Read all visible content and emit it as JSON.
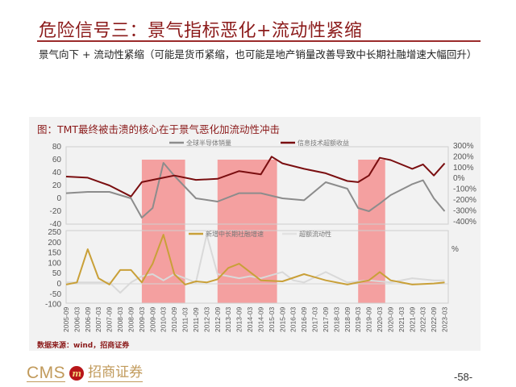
{
  "page": {
    "title": "危险信号三：景气指标恶化+流动性紧缩",
    "subtitle": "景气向下 + 流动性紧缩（可能是货币紧缩，也可能是地产销量改善导致中长期社融增速大幅回升）",
    "chart_caption": "图：TMT最终被击溃的核心在于景气恶化加流动性冲击",
    "source": "数据来源：wind，招商证券",
    "page_number": "-58-",
    "logo": {
      "latin": "CMS",
      "emblem": "m",
      "chinese": "招商证券"
    }
  },
  "chart_data": [
    {
      "type": "line",
      "title": "",
      "legend_position": "top-right",
      "left_axis": {
        "ticks": [
          "80",
          "60",
          "40",
          "20",
          "0",
          "-20",
          "-40"
        ],
        "ylim": [
          -40,
          80
        ]
      },
      "right_axis": {
        "ticks": [
          "300%",
          "200%",
          "100%",
          "0%",
          "-100%",
          "-200%",
          "-300%",
          "-400%"
        ],
        "ylim": [
          -400,
          300
        ]
      },
      "series": [
        {
          "name": "全球半导体销量",
          "axis": "left",
          "color": "#8c8c8c",
          "x": [
            "2005-09",
            "2006-09",
            "2007-09",
            "2008-09",
            "2009-03",
            "2009-09",
            "2010-03",
            "2010-09",
            "2011-09",
            "2012-09",
            "2013-09",
            "2014-09",
            "2015-09",
            "2016-09",
            "2017-09",
            "2018-09",
            "2019-03",
            "2019-09",
            "2020-03",
            "2020-09",
            "2021-09",
            "2022-03",
            "2022-09",
            "2023-03"
          ],
          "values": [
            8,
            10,
            10,
            0,
            -30,
            -15,
            55,
            35,
            0,
            -5,
            8,
            8,
            0,
            -3,
            25,
            15,
            -15,
            -20,
            -8,
            5,
            22,
            28,
            0,
            -20
          ]
        },
        {
          "name": "信息技术超额收益",
          "axis": "right",
          "color": "#7a0e10",
          "x": [
            "2005-09",
            "2006-09",
            "2007-09",
            "2008-09",
            "2009-03",
            "2009-09",
            "2010-03",
            "2010-09",
            "2011-09",
            "2012-09",
            "2013-09",
            "2014-09",
            "2015-03",
            "2015-09",
            "2016-09",
            "2017-09",
            "2018-09",
            "2019-03",
            "2019-09",
            "2020-03",
            "2020-09",
            "2021-09",
            "2022-03",
            "2022-09",
            "2023-03"
          ],
          "values": [
            30,
            20,
            -50,
            -150,
            -20,
            0,
            20,
            40,
            0,
            10,
            80,
            50,
            210,
            150,
            100,
            60,
            -10,
            -20,
            40,
            200,
            180,
            100,
            140,
            40,
            150
          ]
        }
      ],
      "shaded_periods": [
        [
          "2009-03",
          "2011-03"
        ],
        [
          "2012-09",
          "2015-06"
        ],
        [
          "2019-03",
          "2020-06"
        ]
      ]
    },
    {
      "type": "line",
      "title": "",
      "legend_position": "top-right",
      "left_axis": {
        "ticks": [
          "250",
          "200",
          "150",
          "100",
          "50",
          "0",
          "-50",
          "-100"
        ],
        "ylim": [
          -100,
          250
        ]
      },
      "right_axis_label": "%",
      "series": [
        {
          "name": "新增中长期社融增速",
          "color": "#c9a038",
          "x": [
            "2005-09",
            "2006-03",
            "2006-09",
            "2007-03",
            "2007-09",
            "2008-03",
            "2008-09",
            "2009-03",
            "2009-09",
            "2010-03",
            "2010-09",
            "2011-03",
            "2011-09",
            "2012-03",
            "2012-09",
            "2013-03",
            "2013-09",
            "2014-09",
            "2015-09",
            "2016-09",
            "2017-09",
            "2018-09",
            "2019-09",
            "2020-03",
            "2020-09",
            "2021-09",
            "2022-09",
            "2023-03"
          ],
          "values": [
            -10,
            0,
            160,
            20,
            -10,
            60,
            60,
            0,
            90,
            230,
            40,
            -10,
            5,
            0,
            15,
            70,
            90,
            10,
            5,
            40,
            10,
            -10,
            10,
            50,
            10,
            -10,
            -5,
            0
          ]
        },
        {
          "name": "超额流动性",
          "color": "#d9d9d9",
          "x": [
            "2005-09",
            "2007-09",
            "2008-03",
            "2008-09",
            "2009-03",
            "2009-09",
            "2010-03",
            "2010-09",
            "2011-09",
            "2012-03",
            "2012-09",
            "2013-09",
            "2014-03",
            "2014-09",
            "2015-09",
            "2016-03",
            "2016-09",
            "2017-09",
            "2018-09",
            "2019-09",
            "2020-09",
            "2021-09",
            "2022-09",
            "2023-03"
          ],
          "values": [
            0,
            0,
            -50,
            0,
            30,
            40,
            10,
            40,
            0,
            230,
            40,
            20,
            30,
            20,
            50,
            10,
            0,
            50,
            0,
            10,
            0,
            20,
            10,
            10
          ]
        }
      ],
      "shaded_periods": [
        [
          "2009-03",
          "2011-03"
        ],
        [
          "2012-09",
          "2015-06"
        ],
        [
          "2019-03",
          "2020-06"
        ]
      ]
    }
  ],
  "x_axis": {
    "tick_labels": [
      "2005-09",
      "2006-03",
      "2006-09",
      "2007-03",
      "2007-09",
      "2008-03",
      "2008-09",
      "2009-03",
      "2009-09",
      "2010-03",
      "2010-09",
      "2011-03",
      "2011-09",
      "2012-03",
      "2012-09",
      "2013-03",
      "2013-09",
      "2014-03",
      "2014-09",
      "2015-03",
      "2015-09",
      "2016-03",
      "2016-09",
      "2017-03",
      "2017-09",
      "2018-03",
      "2018-09",
      "2019-03",
      "2019-09",
      "2020-03",
      "2020-09",
      "2021-03",
      "2021-09",
      "2022-03",
      "2022-09",
      "2023-03"
    ]
  },
  "colors": {
    "title_red": "#8b1a1a",
    "shade": "#f4a0a0",
    "logo_gold": "#c19a5b",
    "logo_red": "#b8161a"
  }
}
